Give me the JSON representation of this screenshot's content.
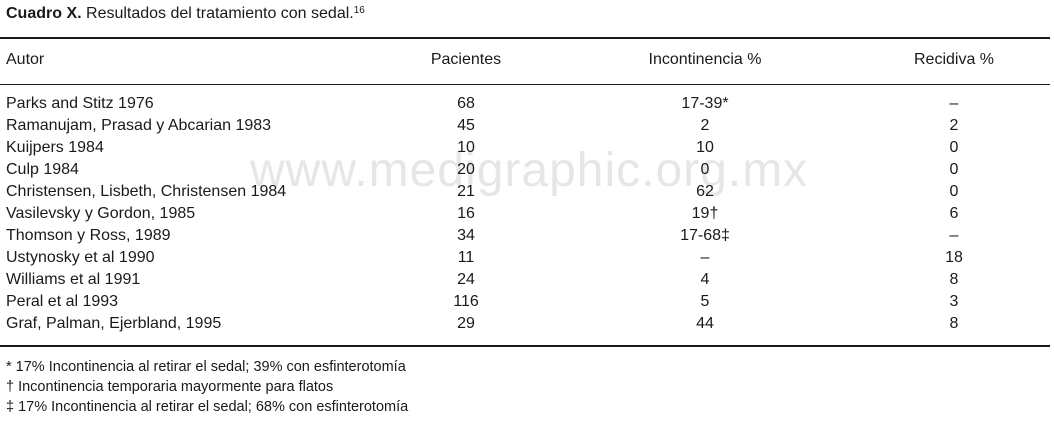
{
  "caption": {
    "label": "Cuadro X.",
    "text": " Resultados del tratamiento con sedal.",
    "ref": "16"
  },
  "headers": {
    "author": "Autor",
    "patients": "Pacientes",
    "incontinence": "Incontinencia %",
    "recurrence": "Recidiva %"
  },
  "rows": [
    {
      "author": "Parks and Stitz 1976",
      "patients": "68",
      "incontinence": "17-39*",
      "recurrence": "–"
    },
    {
      "author": "Ramanujam, Prasad y Abcarian 1983",
      "patients": "45",
      "incontinence": "2",
      "recurrence": "2"
    },
    {
      "author": "Kuijpers 1984",
      "patients": "10",
      "incontinence": "10",
      "recurrence": "0"
    },
    {
      "author": "Culp 1984",
      "patients": "20",
      "incontinence": "0",
      "recurrence": "0"
    },
    {
      "author": "Christensen, Lisbeth, Christensen 1984",
      "patients": "21",
      "incontinence": "62",
      "recurrence": "0"
    },
    {
      "author": "Vasilevsky y Gordon, 1985",
      "patients": "16",
      "incontinence": "19†",
      "recurrence": "6"
    },
    {
      "author": "Thomson y Ross, 1989",
      "patients": "34",
      "incontinence": "17-68‡",
      "recurrence": "–"
    },
    {
      "author": "Ustynosky et al 1990",
      "patients": "11",
      "incontinence": "–",
      "recurrence": "18"
    },
    {
      "author": "Williams et al 1991",
      "patients": "24",
      "incontinence": "4",
      "recurrence": "8"
    },
    {
      "author": "Peral et al 1993",
      "patients": "116",
      "incontinence": "5",
      "recurrence": "3"
    },
    {
      "author": "Graf, Palman, Ejerbland, 1995",
      "patients": "29",
      "incontinence": "44",
      "recurrence": "8"
    }
  ],
  "footnotes": [
    "* 17% Incontinencia al retirar el sedal; 39% con esfinterotomía",
    "† Incontinencia temporaria mayormente para flatos",
    "‡ 17% Incontinencia al retirar el sedal; 68% con esfinterotomía"
  ],
  "watermark": "www.medigraphic.org.mx"
}
